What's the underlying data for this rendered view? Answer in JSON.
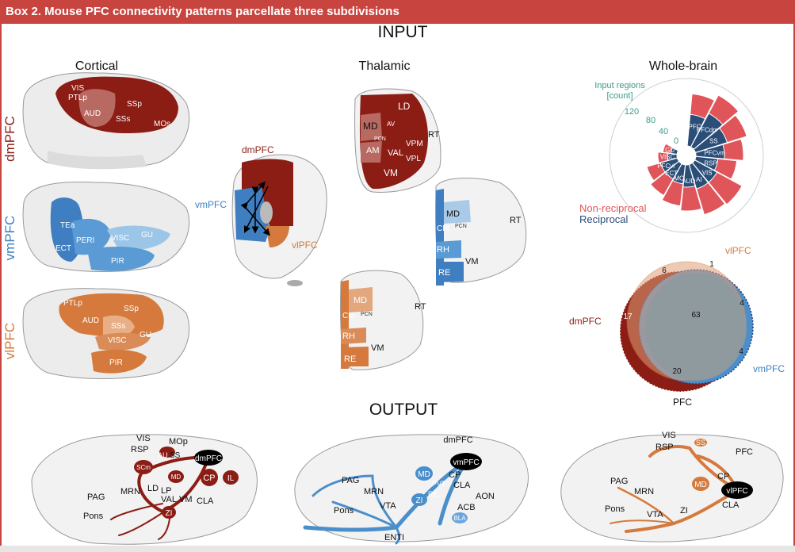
{
  "banner": {
    "title": "Box 2. Mouse PFC connectivity patterns parcellate three subdivisions"
  },
  "sections": {
    "input": "INPUT",
    "output": "OUTPUT"
  },
  "column_titles": {
    "cortical": "Cortical",
    "thalamic": "Thalamic",
    "whole_brain": "Whole-brain"
  },
  "subdivisions": {
    "dmpfc": "dmPFC",
    "vmpfc": "vmPFC",
    "vlpfc": "vlPFC"
  },
  "colors": {
    "dmpfc": "#8b1d15",
    "vmpfc": "#3f7fc1",
    "vlpfc": "#d57a3c",
    "banner": "#c8443f",
    "nonreciprocal": "#e0555a",
    "reciprocal": "#2a4e78",
    "axis": "#3a9a8a"
  },
  "cortical": {
    "dm": {
      "vis": "VIS",
      "ptlp": "PTLp",
      "aud": "AUD",
      "ssp": "SSp",
      "sss": "SSs",
      "mos": "MOs"
    },
    "vm": {
      "tea": "TEa",
      "peri": "PERI",
      "ect": "ECT",
      "visc": "VISC",
      "gu": "GU",
      "pir": "PIR"
    },
    "vl": {
      "ptlp": "PTLp",
      "aud": "AUD",
      "ssp": "SSp",
      "sss": "SSs",
      "visc": "VISC",
      "gu": "GU",
      "pir": "PIR"
    }
  },
  "thalamic": {
    "dm": {
      "ld": "LD",
      "md": "MD",
      "av": "AV",
      "pcn": "PCN",
      "rt": "RT",
      "am": "AM",
      "val": "VAL",
      "vpm": "VPM",
      "vpl": "VPL",
      "vm": "VM"
    },
    "vm": {
      "md": "MD",
      "cm": "CM",
      "pcn": "PCN",
      "rt": "RT",
      "rh": "RH",
      "vm": "VM",
      "re": "RE"
    },
    "vl": {
      "md": "MD",
      "cm": "CM",
      "pcn": "PCN",
      "rt": "RT",
      "rh": "RH",
      "vm": "VM",
      "re": "RE"
    }
  },
  "whole_brain": {
    "axis_title": "Input regions",
    "axis_unit": "[count]",
    "ticks": [
      "120",
      "80",
      "40",
      "0"
    ],
    "legend": {
      "nonreciprocal": "Non-reciprocal",
      "reciprocal": "Reciprocal"
    },
    "sectors": [
      "PFC",
      "PFCdm",
      "SS",
      "PFCvm",
      "RSP",
      "VIS",
      "AI",
      "AUD",
      "MO",
      "ECT",
      "PFCvl",
      "VISC",
      "GU"
    ],
    "venn": {
      "label_vl": "vlPFC",
      "label_dm": "dmPFC",
      "label_vm": "vmPFC",
      "label_bottom": "PFC",
      "counts": {
        "dm_only": "17",
        "vl_only": "1",
        "vm_only": "4",
        "dm_vl": "6",
        "dm_vm": "20",
        "vm_vl": "4",
        "all": "63"
      }
    }
  },
  "output": {
    "dm": {
      "vis": "VIS",
      "mop": "MOp",
      "rsp": "RSP",
      "au": "AU",
      "ss": "SS",
      "pfc": "dmPFC",
      "scm": "SCm",
      "md": "MD",
      "cp": "CP",
      "il": "IL",
      "mrn": "MRN",
      "ld": "LD",
      "lp": "LP",
      "val": "VAL",
      "vm": "VM",
      "cla": "CLA",
      "pag": "PAG",
      "zi": "ZI",
      "pons": "Pons"
    },
    "vm": {
      "title": "dmPFC",
      "pfc": "vmPFC",
      "pag": "PAG",
      "md": "MD",
      "cp": "CP",
      "mrn": "MRN",
      "pvt": "PVT",
      "cla": "CLA",
      "re": "RE",
      "aon": "AON",
      "zi": "ZI",
      "vta": "VTA",
      "acb": "ACB",
      "pons": "Pons",
      "bla": "BLA",
      "enti": "ENTI"
    },
    "vl": {
      "vis": "VIS",
      "rsp": "RSP",
      "ss": "SS",
      "pfcl": "PFC",
      "pag": "PAG",
      "md": "MD",
      "cp": "CP",
      "pfc": "vlPFC",
      "mrn": "MRN",
      "cla": "CLA",
      "pons": "Pons",
      "zi": "ZI",
      "vta": "VTA"
    }
  }
}
